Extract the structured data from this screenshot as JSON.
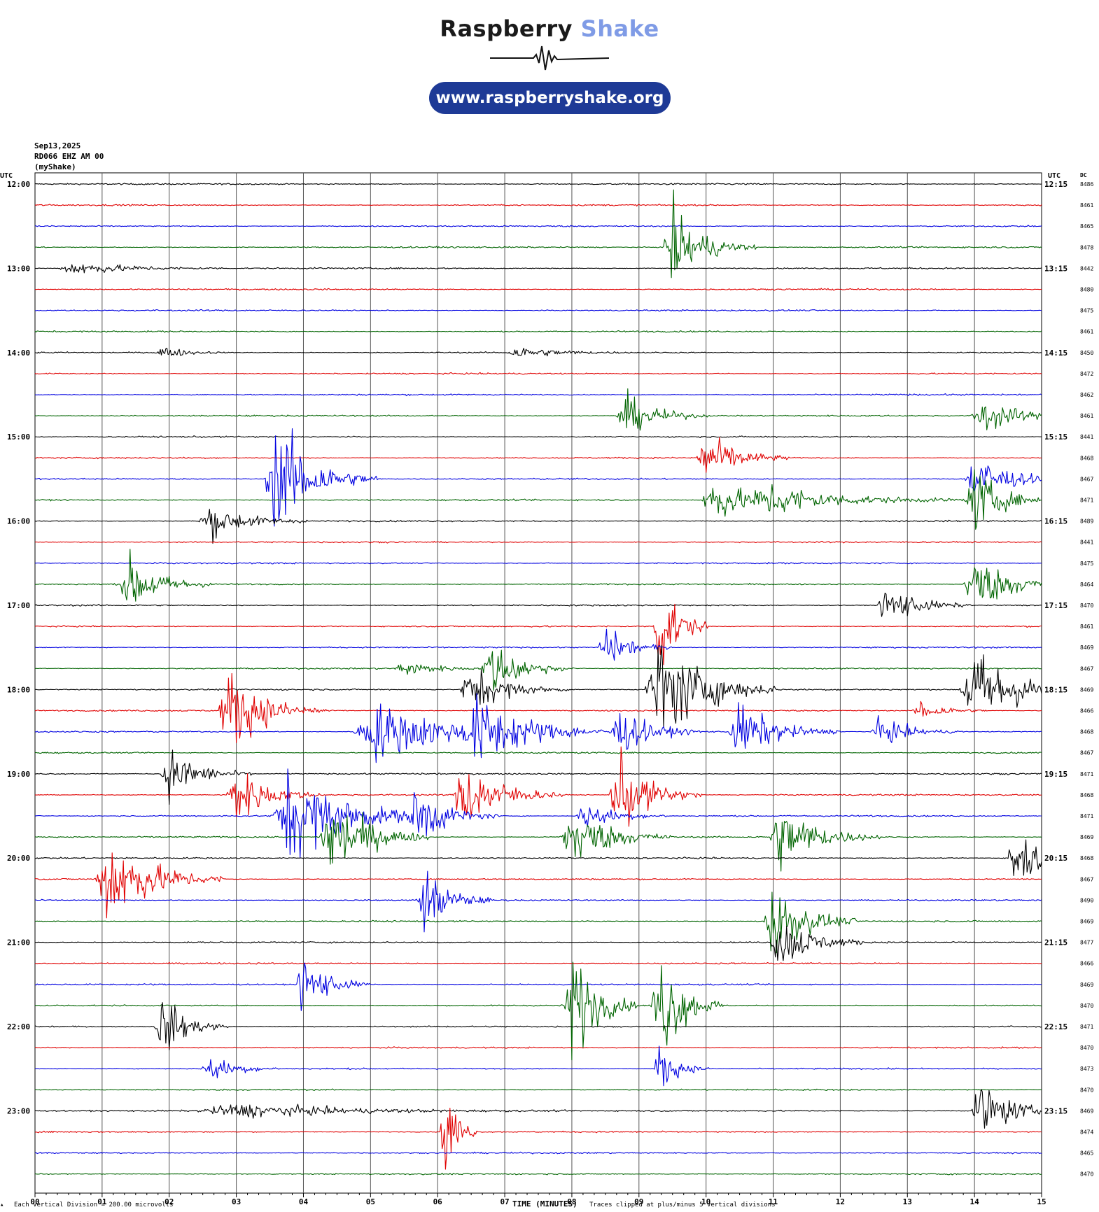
{
  "logo": {
    "title_part1": "Raspberry",
    "title_part2": "Shake",
    "url": "www.raspberryshake.org",
    "title_color": "#1a1a1a",
    "accent_color": "#7f9be6",
    "pill_color": "#1e3a96"
  },
  "header": {
    "date": "Sep13,2025",
    "station": "RD066 EHZ AM 00",
    "source": "(myShake)",
    "utc_left": "UTC",
    "utc_right": "UTC",
    "dc_label": "DC"
  },
  "footer": {
    "division_note": "Each Vertical Division =  200.00 microvolts",
    "xlabel": "TIME (MINUTES)",
    "clip_note": "Traces clipped at plus/minus 5 vertical divisions"
  },
  "chart_data": {
    "type": "line",
    "subtype": "helicorder",
    "xlabel": "TIME (MINUTES)",
    "xlim": [
      0,
      15
    ],
    "x_ticks": [
      "00",
      "01",
      "02",
      "03",
      "04",
      "05",
      "06",
      "07",
      "08",
      "09",
      "10",
      "11",
      "12",
      "13",
      "14",
      "15"
    ],
    "trace_colors": [
      "#000000",
      "#e00000",
      "#0000e0",
      "#006400"
    ],
    "left_labels": [
      "12:00",
      "13:00",
      "14:00",
      "15:00",
      "16:00",
      "17:00",
      "18:00",
      "19:00",
      "20:00",
      "21:00",
      "22:00",
      "23:00"
    ],
    "right_labels": [
      "12:15",
      "13:15",
      "14:15",
      "15:15",
      "16:15",
      "17:15",
      "18:15",
      "19:15",
      "20:15",
      "21:15",
      "22:15",
      "23:15"
    ],
    "dc_values": [
      8486,
      8461,
      8465,
      8478,
      8442,
      8480,
      8475,
      8461,
      8450,
      8472,
      8462,
      8461,
      8441,
      8468,
      8467,
      8471,
      8489,
      8441,
      8475,
      8464,
      8470,
      8461,
      8469,
      8467,
      8469,
      8466,
      8468,
      8467,
      8471,
      8468,
      8471,
      8469,
      8468,
      8467,
      8490,
      8469,
      8477,
      8466,
      8469,
      8470,
      8471,
      8470,
      8473,
      8470,
      8469,
      8474,
      8465,
      8470
    ],
    "events": [
      {
        "row": 3,
        "minute": 9.5,
        "amplitude": 3.4,
        "duration": 0.5
      },
      {
        "row": 4,
        "minute": 0.6,
        "amplitude": 0.6,
        "duration": 0.9
      },
      {
        "row": 8,
        "minute": 1.9,
        "amplitude": 0.5,
        "duration": 0.4
      },
      {
        "row": 8,
        "minute": 7.2,
        "amplitude": 0.5,
        "duration": 0.6
      },
      {
        "row": 11,
        "minute": 8.8,
        "amplitude": 1.8,
        "duration": 0.5
      },
      {
        "row": 11,
        "minute": 14.1,
        "amplitude": 1.8,
        "duration": 0.5
      },
      {
        "row": 13,
        "minute": 10.0,
        "amplitude": 2.2,
        "duration": 0.5
      },
      {
        "row": 14,
        "minute": 3.6,
        "amplitude": 5.0,
        "duration": 0.6
      },
      {
        "row": 14,
        "minute": 14.0,
        "amplitude": 2.5,
        "duration": 0.5
      },
      {
        "row": 15,
        "minute": 10.1,
        "amplitude": 2.0,
        "duration": 0.6
      },
      {
        "row": 15,
        "minute": 11.0,
        "amplitude": 1.2,
        "duration": 1.2
      },
      {
        "row": 15,
        "minute": 14.0,
        "amplitude": 3.0,
        "duration": 0.4
      },
      {
        "row": 16,
        "minute": 2.6,
        "amplitude": 1.5,
        "duration": 0.6
      },
      {
        "row": 19,
        "minute": 1.4,
        "amplitude": 2.5,
        "duration": 0.5
      },
      {
        "row": 19,
        "minute": 14.0,
        "amplitude": 2.5,
        "duration": 0.6
      },
      {
        "row": 20,
        "minute": 12.7,
        "amplitude": 1.8,
        "duration": 0.5
      },
      {
        "row": 21,
        "minute": 9.3,
        "amplitude": 5.0,
        "duration": 0.3
      },
      {
        "row": 22,
        "minute": 8.5,
        "amplitude": 1.8,
        "duration": 0.4
      },
      {
        "row": 23,
        "minute": 6.8,
        "amplitude": 2.4,
        "duration": 0.5
      },
      {
        "row": 23,
        "minute": 5.5,
        "amplitude": 0.7,
        "duration": 0.5
      },
      {
        "row": 24,
        "minute": 6.5,
        "amplitude": 2.0,
        "duration": 0.6
      },
      {
        "row": 24,
        "minute": 9.3,
        "amplitude": 5.0,
        "duration": 0.7
      },
      {
        "row": 24,
        "minute": 14.0,
        "amplitude": 3.5,
        "duration": 0.8
      },
      {
        "row": 25,
        "minute": 2.9,
        "amplitude": 3.5,
        "duration": 0.6
      },
      {
        "row": 25,
        "minute": 13.2,
        "amplitude": 1.0,
        "duration": 0.4
      },
      {
        "row": 26,
        "minute": 5.1,
        "amplitude": 2.5,
        "duration": 1.2
      },
      {
        "row": 26,
        "minute": 6.6,
        "amplitude": 2.5,
        "duration": 0.8
      },
      {
        "row": 26,
        "minute": 8.7,
        "amplitude": 2.0,
        "duration": 0.5
      },
      {
        "row": 26,
        "minute": 10.5,
        "amplitude": 2.4,
        "duration": 0.6
      },
      {
        "row": 26,
        "minute": 12.6,
        "amplitude": 1.2,
        "duration": 0.5
      },
      {
        "row": 28,
        "minute": 2.0,
        "amplitude": 2.2,
        "duration": 0.5
      },
      {
        "row": 29,
        "minute": 3.0,
        "amplitude": 2.5,
        "duration": 0.5
      },
      {
        "row": 29,
        "minute": 6.4,
        "amplitude": 3.0,
        "duration": 0.6
      },
      {
        "row": 29,
        "minute": 8.7,
        "amplitude": 3.5,
        "duration": 0.5
      },
      {
        "row": 30,
        "minute": 3.8,
        "amplitude": 4.0,
        "duration": 0.9
      },
      {
        "row": 30,
        "minute": 5.7,
        "amplitude": 2.5,
        "duration": 0.5
      },
      {
        "row": 30,
        "minute": 8.2,
        "amplitude": 1.2,
        "duration": 0.5
      },
      {
        "row": 31,
        "minute": 4.4,
        "amplitude": 3.8,
        "duration": 0.6
      },
      {
        "row": 31,
        "minute": 8.0,
        "amplitude": 2.8,
        "duration": 0.6
      },
      {
        "row": 31,
        "minute": 11.1,
        "amplitude": 2.8,
        "duration": 0.6
      },
      {
        "row": 32,
        "minute": 14.6,
        "amplitude": 3.0,
        "duration": 0.4
      },
      {
        "row": 33,
        "minute": 1.1,
        "amplitude": 4.0,
        "duration": 0.7
      },
      {
        "row": 34,
        "minute": 5.8,
        "amplitude": 2.8,
        "duration": 0.4
      },
      {
        "row": 35,
        "minute": 11.0,
        "amplitude": 3.5,
        "duration": 0.5
      },
      {
        "row": 36,
        "minute": 11.1,
        "amplitude": 2.4,
        "duration": 0.5
      },
      {
        "row": 38,
        "minute": 4.0,
        "amplitude": 2.6,
        "duration": 0.4
      },
      {
        "row": 39,
        "minute": 8.0,
        "amplitude": 5.0,
        "duration": 0.4
      },
      {
        "row": 39,
        "minute": 9.3,
        "amplitude": 5.0,
        "duration": 0.4
      },
      {
        "row": 40,
        "minute": 1.9,
        "amplitude": 2.6,
        "duration": 0.4
      },
      {
        "row": 42,
        "minute": 2.6,
        "amplitude": 1.2,
        "duration": 0.4
      },
      {
        "row": 42,
        "minute": 9.3,
        "amplitude": 2.0,
        "duration": 0.3
      },
      {
        "row": 44,
        "minute": 3.0,
        "amplitude": 0.6,
        "duration": 2.0
      },
      {
        "row": 44,
        "minute": 14.1,
        "amplitude": 2.5,
        "duration": 0.5
      },
      {
        "row": 45,
        "minute": 6.1,
        "amplitude": 5.0,
        "duration": 0.2
      }
    ]
  }
}
